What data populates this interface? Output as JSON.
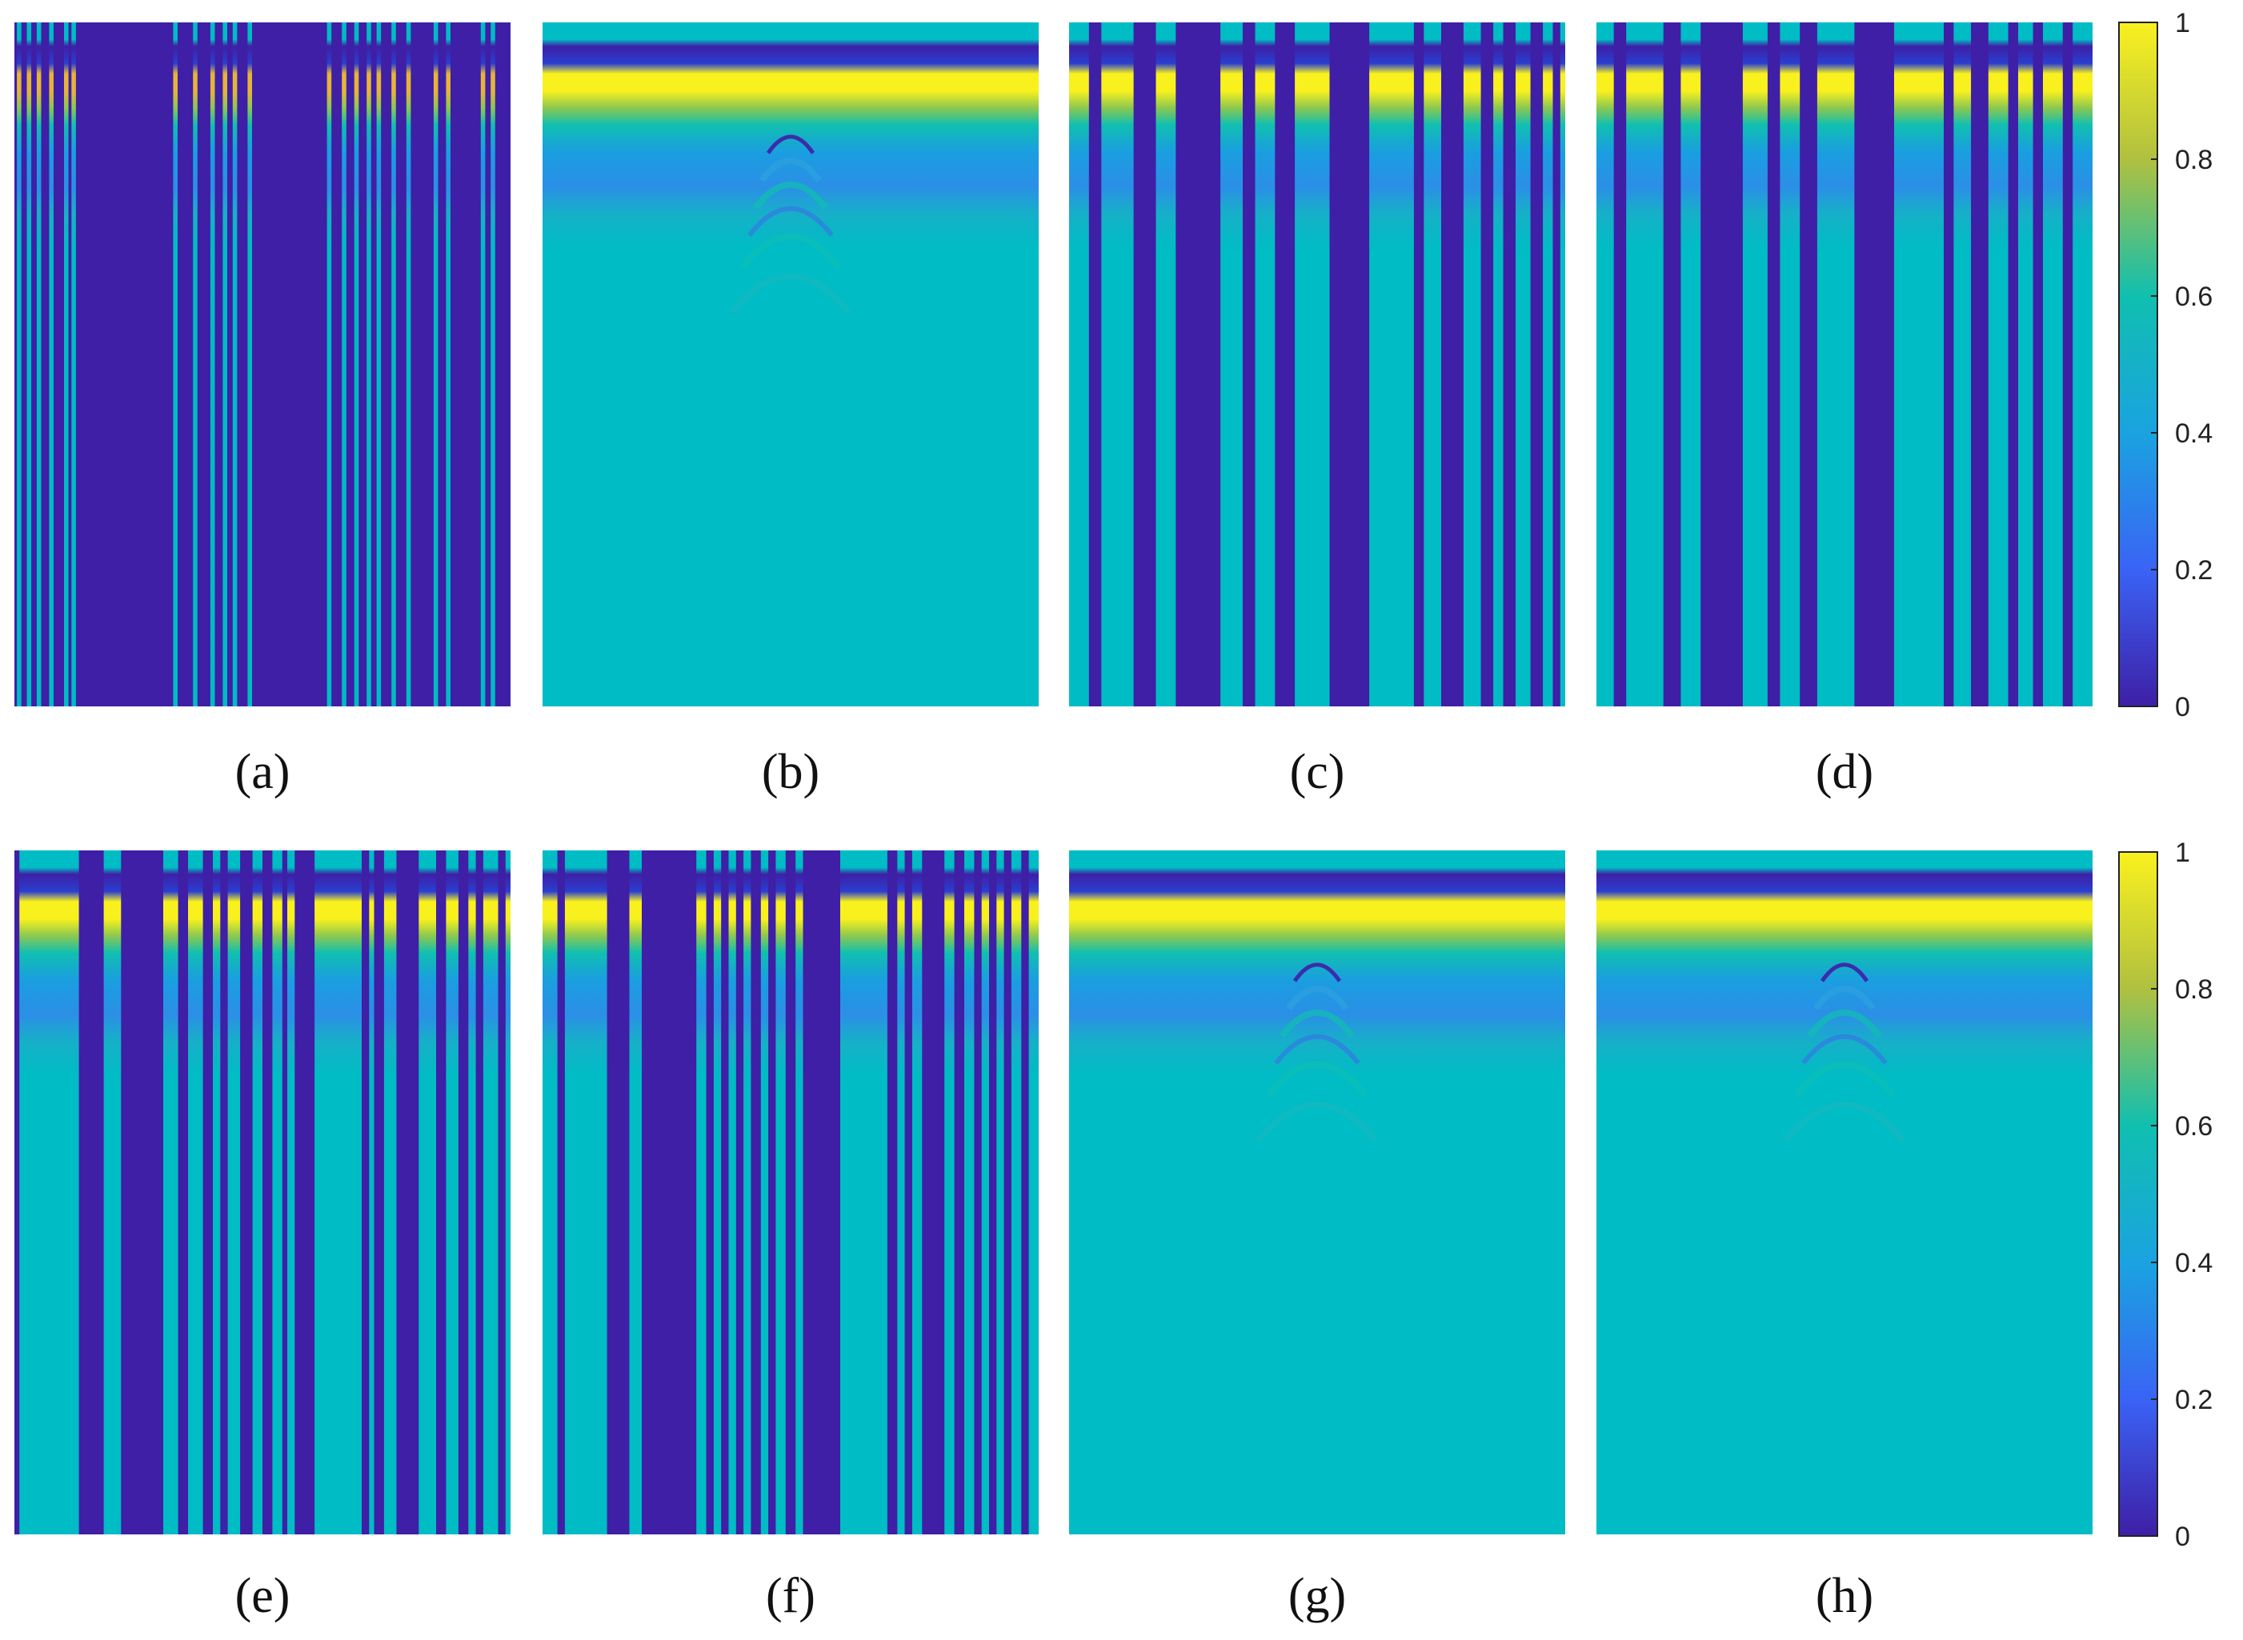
{
  "figure": {
    "panels": [
      {
        "id": "a",
        "label": "(a)",
        "row": 0,
        "col": 0
      },
      {
        "id": "b",
        "label": "(b)",
        "row": 0,
        "col": 1
      },
      {
        "id": "c",
        "label": "(c)",
        "row": 0,
        "col": 2
      },
      {
        "id": "d",
        "label": "(d)",
        "row": 0,
        "col": 3
      },
      {
        "id": "e",
        "label": "(e)",
        "row": 1,
        "col": 0
      },
      {
        "id": "f",
        "label": "(f)",
        "row": 1,
        "col": 1
      },
      {
        "id": "g",
        "label": "(g)",
        "row": 1,
        "col": 2
      },
      {
        "id": "h",
        "label": "(h)",
        "row": 1,
        "col": 3
      }
    ]
  },
  "chart_data": [
    {
      "panel": "a",
      "type": "heatmap",
      "title": "",
      "xlabel": "",
      "ylabel": "",
      "colormap": "parula",
      "clim": [
        0,
        1
      ],
      "background_level": 0.0,
      "columns": [
        0.005,
        0.025,
        0.045,
        0.07,
        0.1,
        0.115,
        0.32,
        0.36,
        0.395,
        0.42,
        0.44,
        0.47,
        0.63,
        0.66,
        0.685,
        0.71,
        0.73,
        0.76,
        0.79,
        0.845,
        0.87,
        0.94,
        0.96
      ],
      "column_width_fraction": 0.009,
      "top_band_peak": 0.85
    },
    {
      "panel": "b",
      "type": "heatmap",
      "title": "",
      "xlabel": "",
      "ylabel": "",
      "colormap": "parula",
      "clim": [
        0,
        1
      ],
      "background_level": 0.48,
      "columns": [],
      "top_band_peak": 1.0,
      "has_hyperbola": true
    },
    {
      "panel": "c",
      "type": "heatmap",
      "title": "",
      "xlabel": "",
      "ylabel": "",
      "colormap": "parula",
      "clim": [
        0,
        1
      ],
      "background_level": 0.48,
      "dark_stripes": [
        [
          0.04,
          0.065
        ],
        [
          0.13,
          0.175
        ],
        [
          0.215,
          0.305
        ],
        [
          0.35,
          0.375
        ],
        [
          0.415,
          0.455
        ],
        [
          0.525,
          0.605
        ],
        [
          0.695,
          0.715
        ],
        [
          0.75,
          0.795
        ],
        [
          0.83,
          0.855
        ],
        [
          0.875,
          0.9
        ],
        [
          0.93,
          0.955
        ],
        [
          0.975,
          0.99
        ]
      ],
      "top_band_peak": 1.0
    },
    {
      "panel": "d",
      "type": "heatmap",
      "title": "",
      "xlabel": "",
      "ylabel": "",
      "colormap": "parula",
      "clim": [
        0,
        1
      ],
      "background_level": 0.48,
      "dark_stripes": [
        [
          0.035,
          0.06
        ],
        [
          0.135,
          0.17
        ],
        [
          0.21,
          0.295
        ],
        [
          0.345,
          0.37
        ],
        [
          0.41,
          0.445
        ],
        [
          0.52,
          0.6
        ],
        [
          0.7,
          0.72
        ],
        [
          0.755,
          0.79
        ],
        [
          0.83,
          0.85
        ],
        [
          0.88,
          0.9
        ],
        [
          0.94,
          0.96
        ]
      ],
      "top_band_peak": 1.0
    },
    {
      "panel": "e",
      "type": "heatmap",
      "title": "",
      "xlabel": "",
      "ylabel": "",
      "colormap": "parula",
      "clim": [
        0,
        1
      ],
      "background_level": 0.48,
      "dark_stripes": [
        [
          0.0,
          0.01
        ],
        [
          0.13,
          0.18
        ],
        [
          0.215,
          0.3
        ],
        [
          0.33,
          0.35
        ],
        [
          0.38,
          0.4
        ],
        [
          0.415,
          0.43
        ],
        [
          0.455,
          0.48
        ],
        [
          0.5,
          0.52
        ],
        [
          0.54,
          0.55
        ],
        [
          0.565,
          0.605
        ],
        [
          0.7,
          0.715
        ],
        [
          0.725,
          0.745
        ],
        [
          0.77,
          0.815
        ],
        [
          0.85,
          0.87
        ],
        [
          0.895,
          0.915
        ],
        [
          0.93,
          0.945
        ],
        [
          0.975,
          0.99
        ]
      ],
      "top_band_peak": 1.0
    },
    {
      "panel": "f",
      "type": "heatmap",
      "title": "",
      "xlabel": "",
      "ylabel": "",
      "colormap": "parula",
      "clim": [
        0,
        1
      ],
      "background_level": 0.48,
      "dark_stripes": [
        [
          0.03,
          0.045
        ],
        [
          0.13,
          0.175
        ],
        [
          0.2,
          0.31
        ],
        [
          0.33,
          0.345
        ],
        [
          0.36,
          0.375
        ],
        [
          0.39,
          0.405
        ],
        [
          0.42,
          0.44
        ],
        [
          0.455,
          0.47
        ],
        [
          0.49,
          0.51
        ],
        [
          0.525,
          0.6
        ],
        [
          0.695,
          0.715
        ],
        [
          0.73,
          0.745
        ],
        [
          0.765,
          0.81
        ],
        [
          0.83,
          0.85
        ],
        [
          0.87,
          0.885
        ],
        [
          0.9,
          0.915
        ],
        [
          0.93,
          0.945
        ],
        [
          0.965,
          0.98
        ]
      ],
      "top_band_peak": 1.0
    },
    {
      "panel": "g",
      "type": "heatmap",
      "title": "",
      "xlabel": "",
      "ylabel": "",
      "colormap": "parula",
      "clim": [
        0,
        1
      ],
      "background_level": 0.48,
      "columns": [],
      "top_band_peak": 1.0,
      "has_hyperbola": true
    },
    {
      "panel": "h",
      "type": "heatmap",
      "title": "",
      "xlabel": "",
      "ylabel": "",
      "colormap": "parula",
      "clim": [
        0,
        1
      ],
      "background_level": 0.48,
      "columns": [],
      "top_band_peak": 1.0,
      "has_hyperbola": true
    }
  ],
  "colorbars": [
    {
      "id": "top",
      "ticks": [
        "0",
        "0.2",
        "0.4",
        "0.6",
        "0.8",
        "1"
      ],
      "tick_values": [
        0,
        0.2,
        0.4,
        0.6,
        0.8,
        1
      ]
    },
    {
      "id": "bottom",
      "ticks": [
        "0",
        "0.2",
        "0.4",
        "0.6",
        "0.8",
        "1"
      ],
      "tick_values": [
        0,
        0.2,
        0.4,
        0.6,
        0.8,
        1
      ]
    }
  ],
  "colors": {
    "parula_0": "#3e1fa6",
    "parula_02": "#3a63f5",
    "parula_04": "#1aa3e0",
    "parula_06": "#10bfb0",
    "parula_08": "#b0c040",
    "parula_1": "#f9f11e",
    "background_cyan": "#00bcc4"
  }
}
